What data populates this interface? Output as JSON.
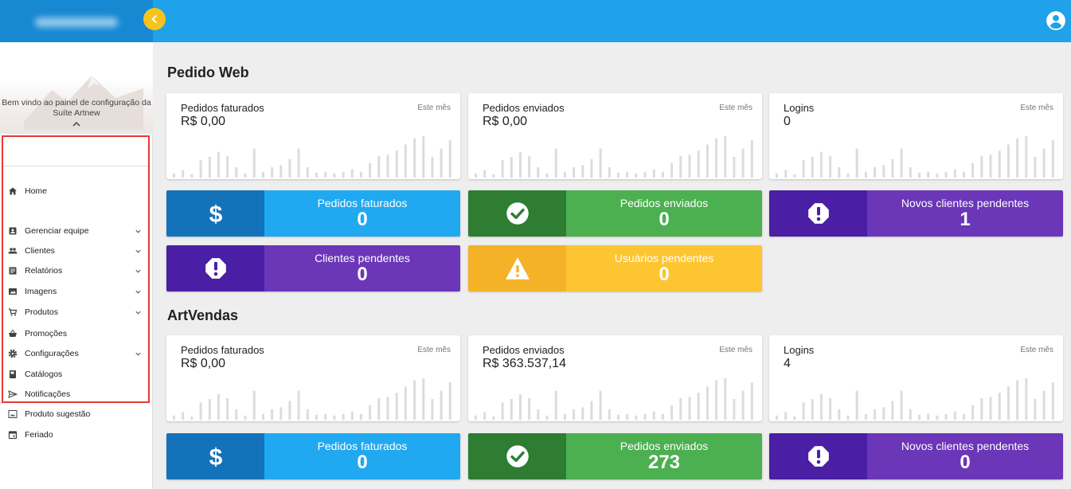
{
  "colors": {
    "topbar": "#1fa2ea",
    "brand": "#1789d2",
    "accent_yellow": "#f7c31d",
    "highlight_border": "#e53935",
    "blue_dark": "#1372b9",
    "blue_light": "#20a9f0",
    "green_dark": "#2e7d32",
    "green_light": "#4caf50",
    "purple_dark": "#4a1ea5",
    "purple_light": "#6b36b8",
    "yellow_dark": "#f4b228",
    "yellow_light": "#fdc531"
  },
  "header": {
    "collapse_icon": "chevron-left-icon",
    "account_icon": "account-circle-icon"
  },
  "sidebar": {
    "welcome": "Bem vindo ao painel de configuração da Suíte Artnew",
    "items": [
      {
        "label": "Home",
        "icon": "home-icon",
        "expandable": false
      },
      {
        "label": "Gerenciar equipe",
        "icon": "badge-icon",
        "expandable": true
      },
      {
        "label": "Clientes",
        "icon": "people-icon",
        "expandable": true
      },
      {
        "label": "Relatórios",
        "icon": "report-icon",
        "expandable": true
      },
      {
        "label": "Imagens",
        "icon": "image-icon",
        "expandable": true
      },
      {
        "label": "Produtos",
        "icon": "cart-icon",
        "expandable": true
      },
      {
        "label": "Promoções",
        "icon": "basket-icon",
        "expandable": false
      },
      {
        "label": "Configurações",
        "icon": "gear-icon",
        "expandable": true
      },
      {
        "label": "Catálogos",
        "icon": "book-icon",
        "expandable": false
      },
      {
        "label": "Notificações",
        "icon": "send-icon",
        "expandable": false
      },
      {
        "label": "Produto sugestão",
        "icon": "gallery-icon",
        "expandable": false
      },
      {
        "label": "Feriado",
        "icon": "calendar-icon",
        "expandable": false
      }
    ]
  },
  "sections": [
    {
      "title": "Pedido Web",
      "cards": [
        {
          "title": "Pedidos faturados",
          "value": "R$ 0,00",
          "period": "Este mês"
        },
        {
          "title": "Pedidos enviados",
          "value": "R$ 0,00",
          "period": "Este mês"
        },
        {
          "title": "Logins",
          "value": "0",
          "period": "Este mês"
        }
      ],
      "stats": [
        {
          "label": "Pedidos faturados",
          "value": "0",
          "icon": "dollar-icon",
          "theme": "blue"
        },
        {
          "label": "Pedidos enviados",
          "value": "0",
          "icon": "check-circle-icon",
          "theme": "green"
        },
        {
          "label": "Novos clientes pendentes",
          "value": "1",
          "icon": "alert-octagon-icon",
          "theme": "purple"
        },
        {
          "label": "Clientes pendentes",
          "value": "0",
          "icon": "alert-octagon-icon",
          "theme": "purple"
        },
        {
          "label": "Usuários pendentes",
          "value": "0",
          "icon": "warning-icon",
          "theme": "yellow"
        }
      ]
    },
    {
      "title": "ArtVendas",
      "cards": [
        {
          "title": "Pedidos faturados",
          "value": "R$ 0,00",
          "period": "Este mês"
        },
        {
          "title": "Pedidos enviados",
          "value": "R$ 363.537,14",
          "period": "Este mês"
        },
        {
          "title": "Logins",
          "value": "4",
          "period": "Este mês"
        }
      ],
      "stats": [
        {
          "label": "Pedidos faturados",
          "value": "0",
          "icon": "dollar-icon",
          "theme": "blue"
        },
        {
          "label": "Pedidos enviados",
          "value": "273",
          "icon": "check-circle-icon",
          "theme": "green"
        },
        {
          "label": "Novos clientes pendentes",
          "value": "0",
          "icon": "alert-octagon-icon",
          "theme": "purple"
        }
      ]
    }
  ]
}
